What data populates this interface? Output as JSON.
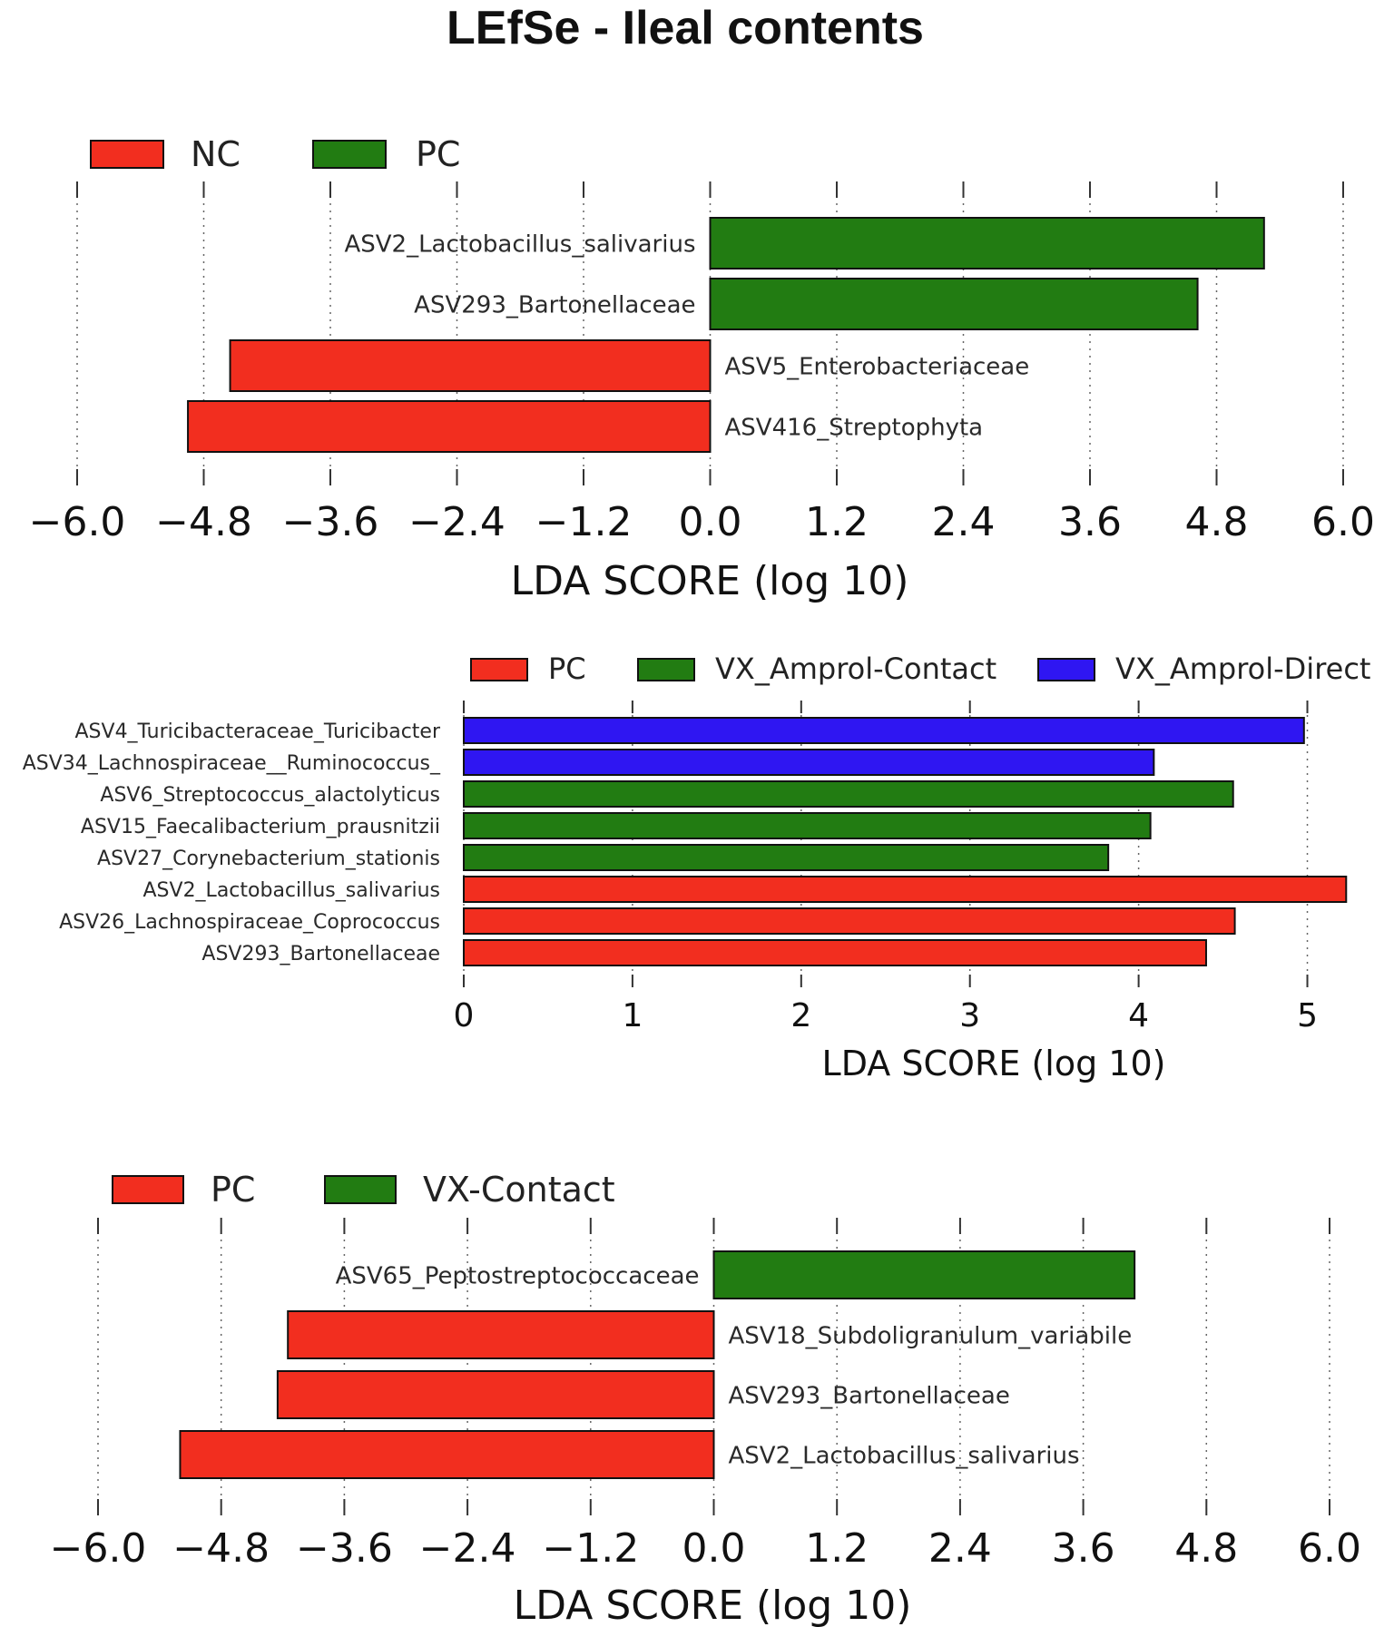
{
  "title": "LEfSe - Ileal contents",
  "colors": {
    "red": "#f22e1f",
    "green": "#227c12",
    "blue": "#2f16f2",
    "bar_stroke": "#111111",
    "grid": "#666666"
  },
  "chart_data": [
    {
      "type": "bar",
      "orientation": "horizontal",
      "legend": [
        {
          "label": "NC",
          "color": "#f22e1f"
        },
        {
          "label": "PC",
          "color": "#227c12"
        }
      ],
      "categories": [
        "ASV2_Lactobacillus_salivarius",
        "ASV293_Bartonellaceae",
        "ASV5_Enterobacteriaceae",
        "ASV416_Streptophyta"
      ],
      "values": [
        5.25,
        4.62,
        -4.55,
        -4.95
      ],
      "series_of_bar": [
        "PC",
        "PC",
        "NC",
        "NC"
      ],
      "ticks": [
        "−6.0",
        "−4.8",
        "−3.6",
        "−2.4",
        "−1.2",
        "0.0",
        "1.2",
        "2.4",
        "3.6",
        "4.8",
        "6.0"
      ],
      "tick_values": [
        -6.0,
        -4.8,
        -3.6,
        -2.4,
        -1.2,
        0.0,
        1.2,
        2.4,
        3.6,
        4.8,
        6.0
      ],
      "xlim": [
        -6.0,
        6.0
      ],
      "xlabel": "LDA SCORE (log 10)",
      "legend_position": "top-left",
      "grid": true
    },
    {
      "type": "bar",
      "orientation": "horizontal",
      "legend": [
        {
          "label": "PC",
          "color": "#f22e1f"
        },
        {
          "label": "VX_Amprol-Contact",
          "color": "#227c12"
        },
        {
          "label": "VX_Amprol-Direct",
          "color": "#2f16f2"
        }
      ],
      "categories": [
        "ASV4_Turicibacteraceae_Turicibacter",
        "ASV34_Lachnospiraceae__Ruminococcus_",
        "ASV6_Streptococcus_alactolyticus",
        "ASV15_Faecalibacterium_prausnitzii",
        "ASV27_Corynebacterium_stationis",
        "ASV2_Lactobacillus_salivarius",
        "ASV26_Lachnospiraceae_Coprococcus",
        "ASV293_Bartonellaceae"
      ],
      "values": [
        4.98,
        4.09,
        4.56,
        4.07,
        3.82,
        5.23,
        4.57,
        4.4
      ],
      "series_of_bar": [
        "VX_Amprol-Direct",
        "VX_Amprol-Direct",
        "VX_Amprol-Contact",
        "VX_Amprol-Contact",
        "VX_Amprol-Contact",
        "PC",
        "PC",
        "PC"
      ],
      "ticks": [
        "0",
        "1",
        "2",
        "3",
        "4",
        "5"
      ],
      "tick_values": [
        0,
        1,
        2,
        3,
        4,
        5
      ],
      "xlim": [
        0,
        5.25
      ],
      "xlabel": "LDA SCORE (log 10)",
      "legend_position": "top",
      "grid": true
    },
    {
      "type": "bar",
      "orientation": "horizontal",
      "legend": [
        {
          "label": "PC",
          "color": "#f22e1f"
        },
        {
          "label": "VX-Contact",
          "color": "#227c12"
        }
      ],
      "categories": [
        "ASV65_Peptostreptococcaceae",
        "ASV18_Subdoligranulum_variabile",
        "ASV293_Bartonellaceae",
        "ASV2_Lactobacillus_salivarius"
      ],
      "values": [
        4.1,
        -4.15,
        -4.25,
        -5.2
      ],
      "series_of_bar": [
        "VX-Contact",
        "PC",
        "PC",
        "PC"
      ],
      "ticks": [
        "−6.0",
        "−4.8",
        "−3.6",
        "−2.4",
        "−1.2",
        "0.0",
        "1.2",
        "2.4",
        "3.6",
        "4.8",
        "6.0"
      ],
      "tick_values": [
        -6.0,
        -4.8,
        -3.6,
        -2.4,
        -1.2,
        0.0,
        1.2,
        2.4,
        3.6,
        4.8,
        6.0
      ],
      "xlim": [
        -6.0,
        6.0
      ],
      "xlabel": "LDA SCORE (log 10)",
      "legend_position": "top-left",
      "grid": true
    }
  ]
}
